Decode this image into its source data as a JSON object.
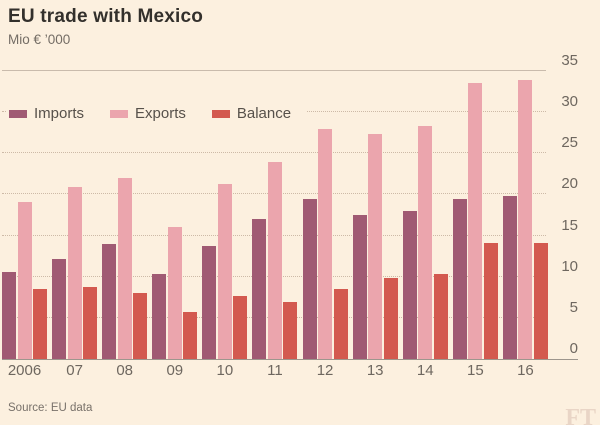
{
  "header": {
    "title": "EU trade with Mexico",
    "subtitle": "Mio € ’000"
  },
  "footer": {
    "source": "Source: EU data",
    "watermark": "FT"
  },
  "colors": {
    "background": "#fcf0df",
    "imports": "#a05a73",
    "exports": "#eba5ad",
    "balance": "#d3594f",
    "grid_dotted": "#cdbaa7",
    "grid_top_solid": "#c9bbac",
    "baseline": "#9d968d",
    "axis_text": "#6e675f",
    "title_text": "#33302c",
    "watermark_text": "#e9d5c6"
  },
  "chart_data": {
    "type": "bar",
    "title": "EU trade with Mexico",
    "subtitle": "Mio € ’000",
    "categories": [
      "2006",
      "07",
      "08",
      "09",
      "10",
      "11",
      "12",
      "13",
      "14",
      "15",
      "16"
    ],
    "series": [
      {
        "name": "Imports",
        "color": "#a05a73",
        "values": [
          10.6,
          12.2,
          14.0,
          10.3,
          13.7,
          17.0,
          19.4,
          17.5,
          18.0,
          19.5,
          19.8
        ]
      },
      {
        "name": "Exports",
        "color": "#eba5ad",
        "values": [
          19.1,
          20.9,
          22.0,
          16.0,
          21.3,
          23.9,
          27.9,
          27.3,
          28.3,
          33.6,
          33.9
        ]
      },
      {
        "name": "Balance",
        "color": "#d3594f",
        "values": [
          8.5,
          8.7,
          8.0,
          5.7,
          7.6,
          6.9,
          8.5,
          9.8,
          10.3,
          14.1,
          14.1
        ]
      }
    ],
    "ylim": [
      0,
      35
    ],
    "yticks": [
      0,
      5,
      10,
      15,
      20,
      25,
      30,
      35
    ],
    "yaxis_side": "right",
    "legend_position": "top-left",
    "grid": "dotted-horizontal",
    "source": "Source: EU data"
  }
}
